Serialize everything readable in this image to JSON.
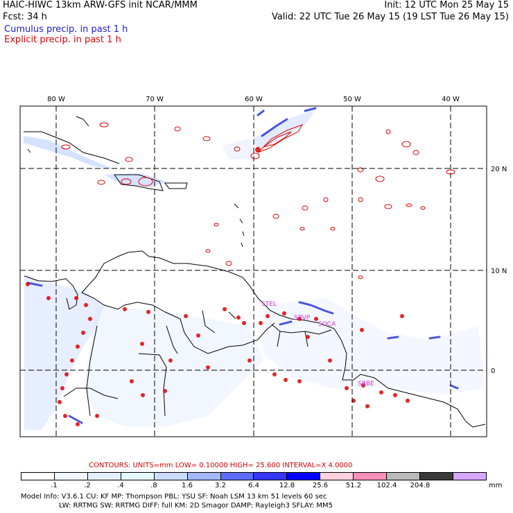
{
  "header": {
    "line1_left": "HAIC-HIWC 13km ARW-GFS init    NCAR/MMM",
    "line2_left": "Fcst:    34 h",
    "line1_right": "Init: 12 UTC Mon 25 May 15",
    "line2_right": "Valid: 22 UTC Tue 26 May 15 (19 LST Tue 26 May 15)"
  },
  "legend": {
    "cumulus": "Cumulus precip. in past 1 h",
    "explicit": "Explicit precip. in past 1 h",
    "cumulus_color": "#1a1ad0",
    "explicit_color": "#e00000"
  },
  "map": {
    "lon_labels": [
      "80 W",
      "70 W",
      "60 W",
      "50 W",
      "40 W"
    ],
    "lat_labels": [
      "20 N",
      "10 N",
      "0"
    ],
    "stations": [
      "STEL",
      "SBVP",
      "SOCA",
      "SBBE"
    ],
    "station_color": "#cc33cc"
  },
  "contours": {
    "text": "CONTOURS:  UNITS=mm  LOW=  0.10000         HIGH=  25.600         INTERVAL=X  4.0000"
  },
  "colorbar": {
    "ticks": [
      ".1",
      ".2",
      ".4",
      ".8",
      "1.6",
      "3.2",
      "6.4",
      "12.8",
      "25.6",
      "51.2",
      "102.4",
      "204.8"
    ],
    "colors": [
      "#ffffff",
      "#f2f7ff",
      "#e4f0ff",
      "#e6fbfd",
      "#ccdcff",
      "#a3b8ff",
      "#5e6cff",
      "#3636ff",
      "#0000ff",
      "#ffd0de",
      "#ff90b8",
      "#bababa",
      "#3a3a3a",
      "#d8a8ff"
    ],
    "units": "mm"
  },
  "model_info": {
    "line1": "Model Info: V3.6.1      CU: KF        MP: Thompson     PBL: YSU       SF: Noah LSM     13 km    51 levels   60 sec",
    "line2": "LW: RRTMG     SW: RRTMG   DIFF: full     KM: 2D Smagor  DAMP: Rayleigh3   SFLAY: MM5"
  }
}
